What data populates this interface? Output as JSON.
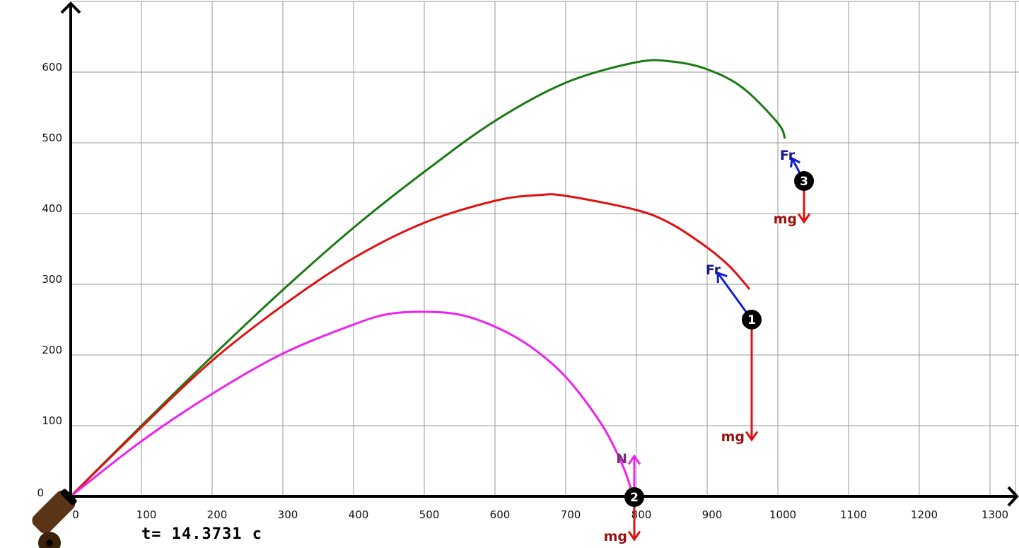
{
  "chart_data": {
    "type": "line",
    "title": "",
    "xlabel": "",
    "ylabel": "",
    "xlim": [
      0,
      1340
    ],
    "ylim": [
      0,
      700
    ],
    "x_ticks": [
      0,
      100,
      200,
      300,
      400,
      500,
      600,
      700,
      800,
      900,
      1000,
      1100,
      1200,
      1300
    ],
    "y_ticks": [
      0,
      100,
      200,
      300,
      400,
      500,
      600
    ],
    "grid": true,
    "time_label": "t=  14.3731  c",
    "series": [
      {
        "id": "green",
        "color": "#1a7a14",
        "points": [
          [
            0,
            0
          ],
          [
            100,
            100
          ],
          [
            200,
            198
          ],
          [
            300,
            292
          ],
          [
            400,
            380
          ],
          [
            500,
            459
          ],
          [
            600,
            531
          ],
          [
            700,
            585
          ],
          [
            800,
            614
          ],
          [
            850,
            615
          ],
          [
            900,
            604
          ],
          [
            950,
            578
          ],
          [
            1000,
            528
          ],
          [
            1010,
            506
          ]
        ]
      },
      {
        "id": "red",
        "color": "#e01010",
        "points": [
          [
            0,
            0
          ],
          [
            100,
            98
          ],
          [
            200,
            192
          ],
          [
            300,
            270
          ],
          [
            400,
            337
          ],
          [
            500,
            387
          ],
          [
            600,
            418
          ],
          [
            660,
            426
          ],
          [
            700,
            425
          ],
          [
            800,
            405
          ],
          [
            850,
            385
          ],
          [
            900,
            352
          ],
          [
            930,
            327
          ],
          [
            950,
            305
          ],
          [
            960,
            293
          ]
        ]
      },
      {
        "id": "magenta",
        "color": "#ee22ee",
        "points": [
          [
            0,
            0
          ],
          [
            100,
            78
          ],
          [
            200,
            145
          ],
          [
            300,
            202
          ],
          [
            400,
            243
          ],
          [
            450,
            258
          ],
          [
            500,
            261
          ],
          [
            550,
            257
          ],
          [
            600,
            240
          ],
          [
            650,
            212
          ],
          [
            700,
            169
          ],
          [
            750,
            103
          ],
          [
            780,
            45
          ],
          [
            795,
            2
          ]
        ]
      }
    ],
    "balls": [
      {
        "label": "1",
        "x": 963,
        "y": 250
      },
      {
        "label": "2",
        "x": 797,
        "y": -1
      },
      {
        "label": "3",
        "x": 1037,
        "y": 446
      }
    ],
    "forces": [
      {
        "ball": "1",
        "label": "Fr",
        "color": "#1020d0",
        "dx": -48,
        "dy": 66,
        "label_color": "#1a1a8a"
      },
      {
        "ball": "1",
        "label": "mg",
        "color": "#e01010",
        "dx": 0,
        "dy": -170,
        "label_color": "#9a1010"
      },
      {
        "ball": "2",
        "label": "N",
        "color": "#ee22ee",
        "dx": 0,
        "dy": 58,
        "label_color": "#7a2a7a"
      },
      {
        "ball": "2",
        "label": "mg",
        "color": "#e01010",
        "dx": 0,
        "dy": -60,
        "label_color": "#9a1010"
      },
      {
        "ball": "3",
        "label": "Fr",
        "color": "#1020d0",
        "dx": -17,
        "dy": 32,
        "label_color": "#1a1a8a"
      },
      {
        "ball": "3",
        "label": "mg",
        "color": "#e01010",
        "dx": 0,
        "dy": -58,
        "label_color": "#9a1010"
      }
    ]
  }
}
